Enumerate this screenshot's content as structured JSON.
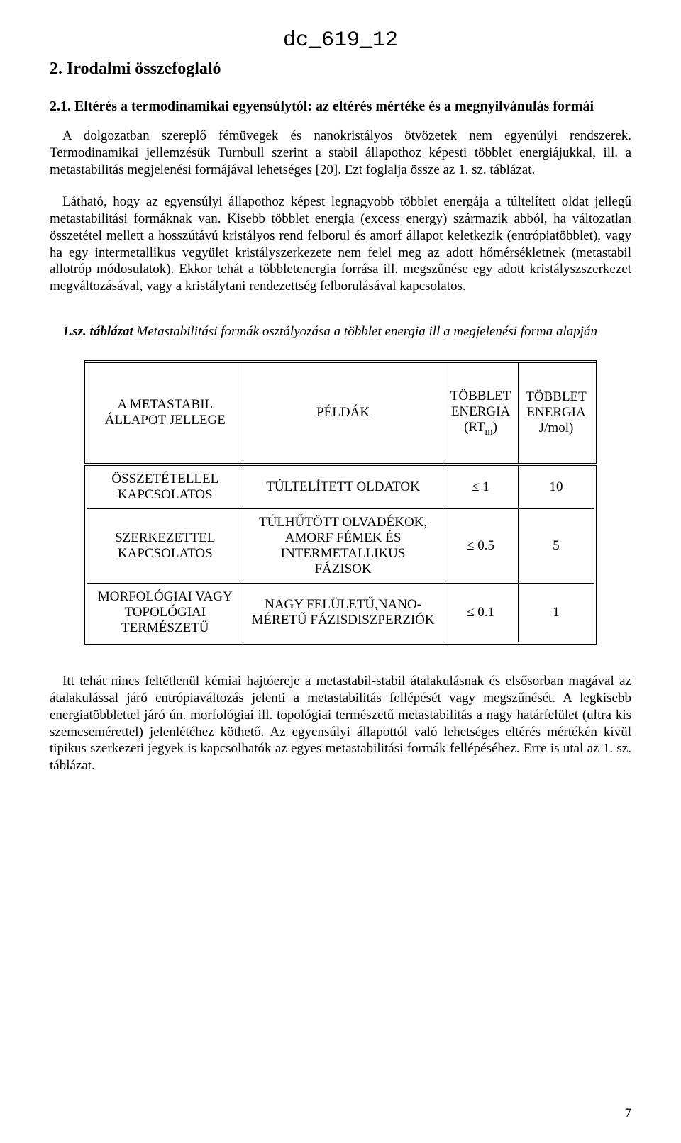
{
  "doc_id": "dc_619_12",
  "heading1": "2. Irodalmi összefoglaló",
  "heading2": "2.1. Eltérés a termodinamikai egyensúlytól: az eltérés mértéke és a megnyilvánulás formái",
  "para1": "A dolgozatban szereplő fémüvegek és nanokristályos ötvözetek nem egyenúlyi rendszerek. Termodinamikai jellemzésük Turnbull szerint a stabil állapothoz képesti többlet energiájukkal, ill. a metastabilitás megjelenési formájával lehetséges [20]. Ezt foglalja össze az 1. sz. táblázat.",
  "para2": "Látható, hogy az egyensúlyi állapothoz képest legnagyobb többlet energája a túltelített oldat jellegű metastabilitási formáknak van. Kisebb többlet energia (excess energy) származik abból, ha változatlan összetétel mellett a hosszútávú kristályos rend felborul és amorf állapot keletkezik (entrópiatöbblet), vagy ha egy intermetallikus vegyület kristályszerkezete nem felel meg az adott hőmérsékletnek (metastabil allotróp módosulatok). Ekkor tehát a többletenergia forrása ill. megszűnése egy adott kristályszszerkezet megváltozásával, vagy a kristálytani rendezettség felborulásával kapcsolatos.",
  "caption_lead": "1.sz. táblázat",
  "caption_rest": " Metastabilitási formák osztályozása a többlet energia ill a megjelenési forma alapján",
  "table": {
    "columns": {
      "c1": "A METASTABIL ÁLLAPOT JELLEGE",
      "c2": "PÉLDÁK",
      "c3_l1": "TÖBBLET",
      "c3_l2": "ENERGIA",
      "c3_l3a": "(RT",
      "c3_l3b": "m",
      "c3_l3c": ")",
      "c4_l1": "TÖBBLET",
      "c4_l2": "ENERGIA",
      "c4_l3": "J/mol)"
    },
    "rows": [
      {
        "c1": "ÖSSZETÉTELLEL KAPCSOLATOS",
        "c2": "TÚLTELÍTETT OLDATOK",
        "c3": "≤ 1",
        "c4": "10"
      },
      {
        "c1": "SZERKEZETTEL KAPCSOLATOS",
        "c2": "TÚLHŰTÖTT OLVADÉKOK, AMORF FÉMEK ÉS INTERMETALLIKUS FÁZISOK",
        "c3": "≤ 0.5",
        "c4": "5"
      },
      {
        "c1": "MORFOLÓGIAI VAGY TOPOLÓGIAI TERMÉSZETŰ",
        "c2": "NAGY FELÜLETŰ,NANO-MÉRETŰ FÁZISDISZPERZIÓK",
        "c3": "≤ 0.1",
        "c4": "1"
      }
    ]
  },
  "para3": "Itt tehát nincs feltétlenül kémiai hajtóereje a metastabil-stabil átalakulásnak és elsősorban magával az átalakulással járó entrópiaváltozás jelenti a metastabilitás fellépését vagy megszűnését. A legkisebb energiatöbblettel járó ún. morfológiai ill. topológiai természetű metastabilitás a nagy határfelület (ultra kis szemcsemérettel) jelenlétéhez köthető. Az egyensúlyi állapottól való lehetséges eltérés mértékén kívül tipikus szerkezeti jegyek is kapcsolhatók az egyes metastabilitási formák fellépéséhez. Erre is utal az 1. sz. táblázat.",
  "page_number": "7"
}
